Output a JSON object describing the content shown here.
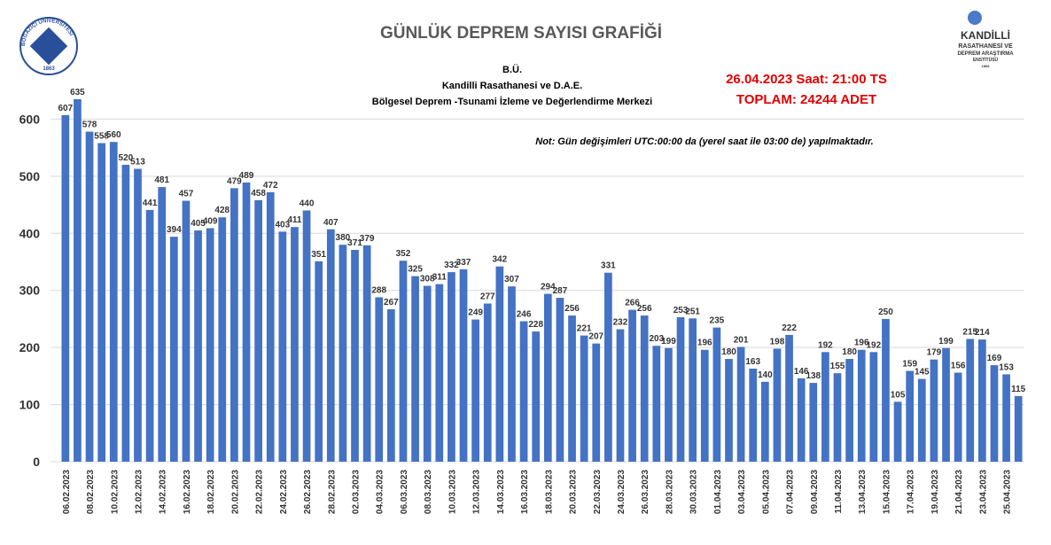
{
  "chart_data": {
    "type": "bar",
    "title": "GÜNLÜK  DEPREM SAYISI GRAFİĞİ",
    "subtitle": [
      "B.Ü.",
      "Kandilli Rasathanesi ve D.A.E.",
      "Bölgesel Deprem -Tsunami İzleme ve Değerlendirme Merkezi"
    ],
    "annotations": [
      "26.04.2023 Saat: 21:00  TS",
      "TOPLAM:  24244  ADET",
      "Not: Gün değişimleri UTC:00:00 da (yerel saat ile 03:00 de) yapılmaktadır."
    ],
    "logos": {
      "left": [
        "BOĞAZİÇİ ÜNİVERSİTESİ",
        "1863"
      ],
      "right": [
        "KANDİLLİ",
        "RASATHANESİ VE",
        "DEPREM ARAŞTIRMA",
        "ENSTİTÜSÜ",
        "1868"
      ]
    },
    "categories": [
      "06.02.2023",
      null,
      "08.02.2023",
      null,
      "10.02.2023",
      null,
      "12.02.2023",
      null,
      "14.02.2023",
      null,
      "16.02.2023",
      null,
      "18.02.2023",
      null,
      "20.02.2023",
      null,
      "22.02.2023",
      null,
      "24.02.2023",
      null,
      "26.02.2023",
      null,
      "28.02.2023",
      null,
      "02.03.2023",
      null,
      "04.03.2023",
      null,
      "06.03.2023",
      null,
      "08.03.2023",
      null,
      "10.03.2023",
      null,
      "12.03.2023",
      null,
      "14.03.2023",
      null,
      "16.03.2023",
      null,
      "18.03.2023",
      null,
      "20.03.2023",
      null,
      "22.03.2023",
      null,
      "24.03.2023",
      null,
      "26.03.2023",
      null,
      "28.03.2023",
      null,
      "30.03.2023",
      null,
      "01.04.2023",
      null,
      "03.04.2023",
      null,
      "05.04.2023",
      null,
      "07.04.2023",
      null,
      "09.04.2023",
      null,
      "11.04.2023",
      null,
      "13.04.2023",
      null,
      "15.04.2023",
      null,
      "17.04.2023",
      null,
      "19.04.2023",
      null,
      "21.04.2023",
      null,
      "23.04.2023",
      null,
      "25.04.2023",
      null
    ],
    "values": [
      607,
      635,
      578,
      558,
      560,
      520,
      513,
      441,
      481,
      394,
      457,
      405,
      409,
      428,
      479,
      489,
      458,
      472,
      403,
      411,
      440,
      351,
      407,
      380,
      371,
      379,
      288,
      267,
      352,
      325,
      308,
      311,
      332,
      337,
      249,
      277,
      342,
      307,
      246,
      228,
      294,
      287,
      256,
      221,
      207,
      331,
      232,
      266,
      256,
      203,
      199,
      253,
      251,
      196,
      235,
      180,
      201,
      163,
      140,
      198,
      222,
      146,
      138,
      192,
      155,
      180,
      196,
      192,
      250,
      105,
      159,
      145,
      179,
      199,
      156,
      215,
      214,
      169,
      153,
      115
    ],
    "color": "#4472c4",
    "ylim": [
      0,
      700
    ],
    "yticks": [
      0,
      100,
      200,
      300,
      400,
      500,
      600
    ],
    "grid": true
  }
}
